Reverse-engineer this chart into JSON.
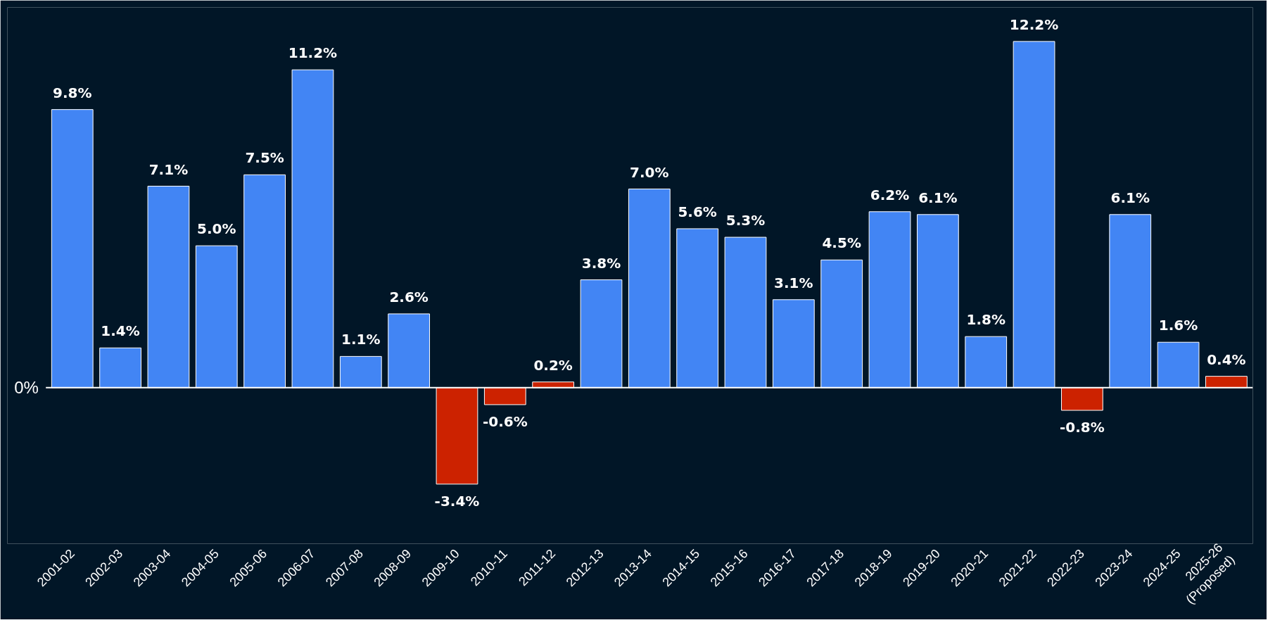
{
  "chart_data": {
    "type": "bar",
    "categories": [
      "2001-02",
      "2002-03",
      "2003-04",
      "2004-05",
      "2005-06",
      "2006-07",
      "2007-08",
      "2008-09",
      "2009-10",
      "2010-11",
      "2011-12",
      "2012-13",
      "2013-14",
      "2014-15",
      "2015-16",
      "2016-17",
      "2017-18",
      "2018-19",
      "2019-20",
      "2020-21",
      "2021-22",
      "2022-23",
      "2023-24",
      "2024-25",
      "2025-26\n(Proposed)"
    ],
    "values": [
      9.8,
      1.4,
      7.1,
      5.0,
      7.5,
      11.2,
      1.1,
      2.6,
      -3.4,
      -0.6,
      0.2,
      3.8,
      7.0,
      5.6,
      5.3,
      3.1,
      4.5,
      6.2,
      6.1,
      1.8,
      12.2,
      -0.8,
      6.1,
      1.6,
      0.4
    ],
    "value_labels": [
      "9.8%",
      "1.4%",
      "7.1%",
      "5.0%",
      "7.5%",
      "11.2%",
      "1.1%",
      "2.6%",
      "-3.4%",
      "-0.6%",
      "0.2%",
      "3.8%",
      "7.0%",
      "5.6%",
      "5.3%",
      "3.1%",
      "4.5%",
      "6.2%",
      "6.1%",
      "1.8%",
      "12.2%",
      "-0.8%",
      "6.1%",
      "1.6%",
      "0.4%"
    ],
    "colors": [
      "#4285f4",
      "#4285f4",
      "#4285f4",
      "#4285f4",
      "#4285f4",
      "#4285f4",
      "#4285f4",
      "#4285f4",
      "#cc2200",
      "#cc2200",
      "#cc2200",
      "#4285f4",
      "#4285f4",
      "#4285f4",
      "#4285f4",
      "#4285f4",
      "#4285f4",
      "#4285f4",
      "#4285f4",
      "#4285f4",
      "#4285f4",
      "#cc2200",
      "#4285f4",
      "#4285f4",
      "#cc2200"
    ],
    "ylim": [
      -5.5,
      13.4
    ],
    "ref_lines": [
      {
        "axis": "y",
        "value": 0,
        "color": "#ffffff",
        "label": "0%"
      }
    ],
    "grid": false
  }
}
